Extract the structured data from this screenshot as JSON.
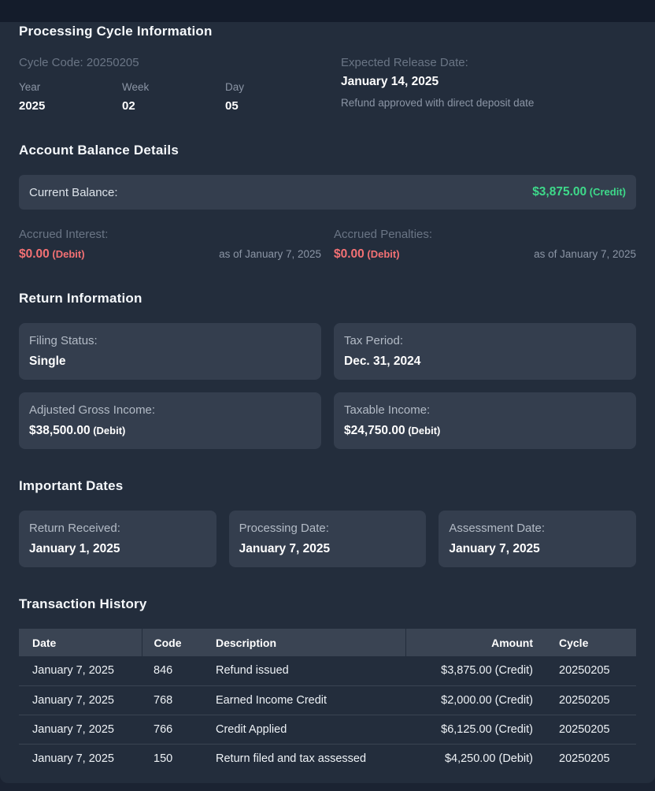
{
  "colors": {
    "credit": "#3ed98a",
    "debit": "#f47174",
    "panel_bg": "#232d3c",
    "card_bg": "#343e4e"
  },
  "processing_cycle": {
    "heading": "Processing Cycle Information",
    "cycle_code": "Cycle Code: 20250205",
    "fields": [
      {
        "label": "Year",
        "value": "2025"
      },
      {
        "label": "Week",
        "value": "02"
      },
      {
        "label": "Day",
        "value": "05"
      }
    ],
    "expected_release": {
      "label": "Expected Release Date:",
      "date": "January 14, 2025",
      "note": "Refund approved with direct deposit date"
    }
  },
  "account_balance": {
    "heading": "Account Balance Details",
    "current_balance": {
      "label": "Current Balance:",
      "amount": "$3,875.00",
      "suffix": " (Credit)",
      "type": "credit"
    },
    "accrued": [
      {
        "label": "Accrued Interest:",
        "amount": "$0.00",
        "suffix": " (Debit)",
        "type": "debit",
        "as_of": "as of January 7, 2025"
      },
      {
        "label": "Accrued Penalties:",
        "amount": "$0.00",
        "suffix": " (Debit)",
        "type": "debit",
        "as_of": "as of January 7, 2025"
      }
    ]
  },
  "return_information": {
    "heading": "Return Information",
    "cards": [
      {
        "label": "Filing Status:",
        "value": "Single",
        "type": "plain"
      },
      {
        "label": "Tax Period:",
        "value": "Dec. 31, 2024",
        "type": "plain"
      },
      {
        "label": "Adjusted Gross Income:",
        "value": "$38,500.00",
        "suffix": " (Debit)",
        "type": "debit"
      },
      {
        "label": "Taxable Income:",
        "value": "$24,750.00",
        "suffix": " (Debit)",
        "type": "debit"
      }
    ]
  },
  "important_dates": {
    "heading": "Important Dates",
    "cards": [
      {
        "label": "Return Received:",
        "value": "January 1, 2025"
      },
      {
        "label": "Processing Date:",
        "value": "January 7, 2025"
      },
      {
        "label": "Assessment Date:",
        "value": "January 7, 2025"
      }
    ]
  },
  "transactions": {
    "heading": "Transaction History",
    "columns": [
      "Date",
      "Code",
      "Description",
      "Amount",
      "Cycle"
    ],
    "rows": [
      {
        "date": "January 7, 2025",
        "code": "846",
        "description": "Refund issued",
        "amount": "$3,875.00 (Credit)",
        "type": "credit",
        "cycle": "20250205"
      },
      {
        "date": "January 7, 2025",
        "code": "768",
        "description": "Earned Income Credit",
        "amount": "$2,000.00 (Credit)",
        "type": "credit",
        "cycle": "20250205"
      },
      {
        "date": "January 7, 2025",
        "code": "766",
        "description": "Credit Applied",
        "amount": "$6,125.00 (Credit)",
        "type": "credit",
        "cycle": "20250205"
      },
      {
        "date": "January 7, 2025",
        "code": "150",
        "description": "Return filed and tax assessed",
        "amount": "$4,250.00 (Debit)",
        "type": "debit",
        "cycle": "20250205"
      }
    ]
  }
}
